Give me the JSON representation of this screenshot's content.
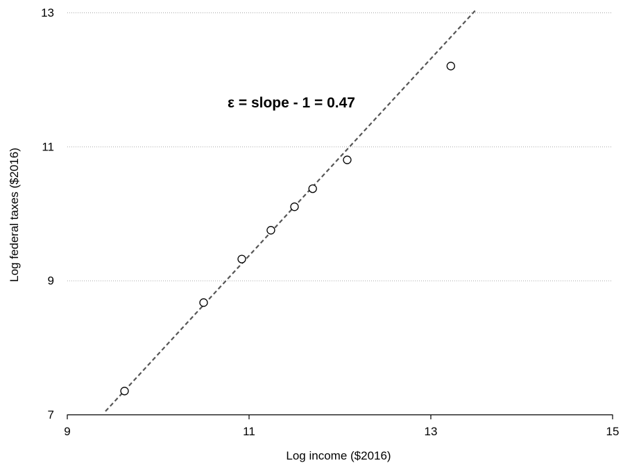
{
  "chart_data": {
    "type": "scatter",
    "xlabel": "Log income ($2016)",
    "ylabel": "Log federal taxes ($2016)",
    "xlim": [
      9,
      15
    ],
    "ylim": [
      7,
      13
    ],
    "xticks": [
      9,
      11,
      13,
      15
    ],
    "yticks": [
      7,
      9,
      11,
      13
    ],
    "grid": "horizontal dotted",
    "annotation": "ε = slope - 1 = 0.47",
    "series": [
      {
        "values": [
          {
            "x": 9.63,
            "y": 7.35
          },
          {
            "x": 10.5,
            "y": 8.67
          },
          {
            "x": 10.92,
            "y": 9.32
          },
          {
            "x": 11.24,
            "y": 9.75
          },
          {
            "x": 11.5,
            "y": 10.1
          },
          {
            "x": 11.7,
            "y": 10.37
          },
          {
            "x": 12.08,
            "y": 10.8
          },
          {
            "x": 13.22,
            "y": 12.2
          }
        ]
      }
    ],
    "fit_line": {
      "style": "dashed",
      "slope": 1.47,
      "intercept": -6.8,
      "x_range": [
        9.42,
        13.5
      ]
    }
  }
}
